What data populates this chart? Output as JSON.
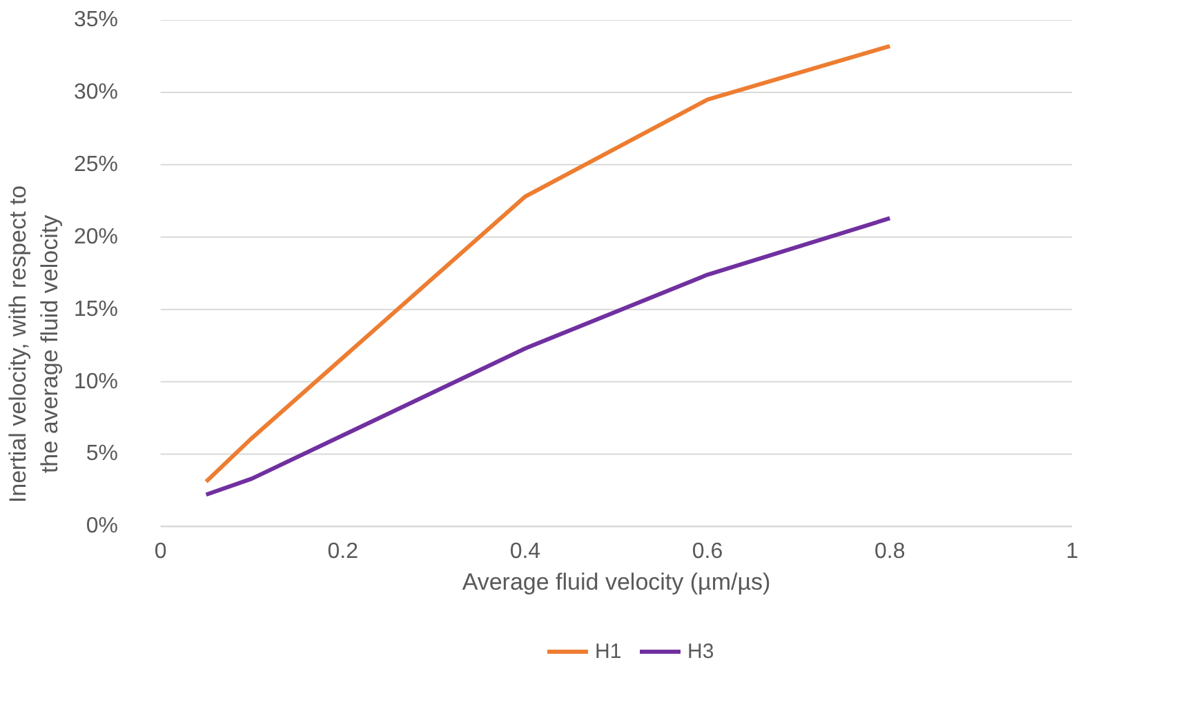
{
  "chart_data": {
    "type": "line",
    "xlabel": "Average fluid velocity (µm/µs)",
    "ylabel": "Inertial velocity, with respect to the average fluid velocity",
    "xlim": [
      0,
      1
    ],
    "xticks": [
      0,
      0.2,
      0.4,
      0.6,
      0.8,
      1
    ],
    "ylim": [
      0,
      35
    ],
    "yticks": [
      {
        "value": 0,
        "label": "0%"
      },
      {
        "value": 5,
        "label": "5%"
      },
      {
        "value": 10,
        "label": "10%"
      },
      {
        "value": 15,
        "label": "15%"
      },
      {
        "value": 20,
        "label": "20%"
      },
      {
        "value": 25,
        "label": "25%"
      },
      {
        "value": 30,
        "label": "30%"
      },
      {
        "value": 35,
        "label": "35%"
      }
    ],
    "grid": "y",
    "legend": "bottom",
    "marker": "none",
    "line_style": "solid",
    "x": [
      0.05,
      0.1,
      0.4,
      0.6,
      0.8
    ],
    "series": [
      {
        "name": "H1",
        "color": "#ed7d31",
        "values": [
          3.1,
          6.1,
          22.8,
          29.5,
          33.2
        ]
      },
      {
        "name": "H3",
        "color": "#7030a0",
        "values": [
          2.2,
          3.3,
          12.3,
          17.4,
          21.3
        ]
      }
    ]
  }
}
